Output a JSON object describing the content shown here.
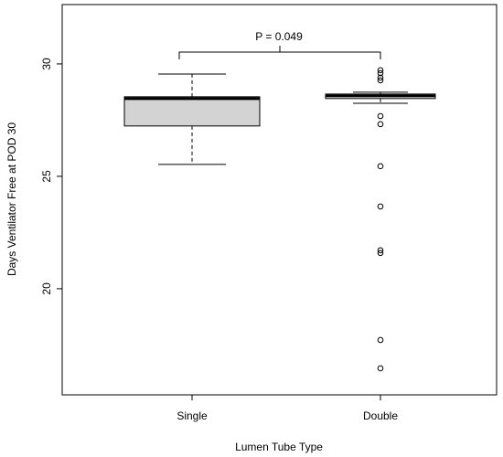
{
  "chart_data": {
    "type": "box",
    "annotation": "P = 0.049",
    "x_label": "Lumen Tube Type",
    "y_label": "Days Ventilator Free at POD 30",
    "categories": [
      "Single",
      "Double"
    ],
    "colors": [
      "#d3d3d3",
      "#ffffff"
    ],
    "boxes": [
      {
        "whisker_low": 25.53,
        "q1": 27.24,
        "median": 28.46,
        "q3": 28.54,
        "whisker_high": 29.55,
        "outliers": []
      },
      {
        "whisker_low": 28.25,
        "q1": 28.46,
        "median": 28.58,
        "q3": 28.66,
        "whisker_high": 28.74,
        "outliers": [
          29.72,
          29.59,
          29.39,
          29.27,
          27.68,
          27.32,
          25.45,
          23.66,
          21.71,
          21.59,
          17.72,
          16.46
        ]
      }
    ],
    "ylim": [
      15.28,
      32.64
    ],
    "yticks": [
      20,
      25,
      30
    ]
  }
}
